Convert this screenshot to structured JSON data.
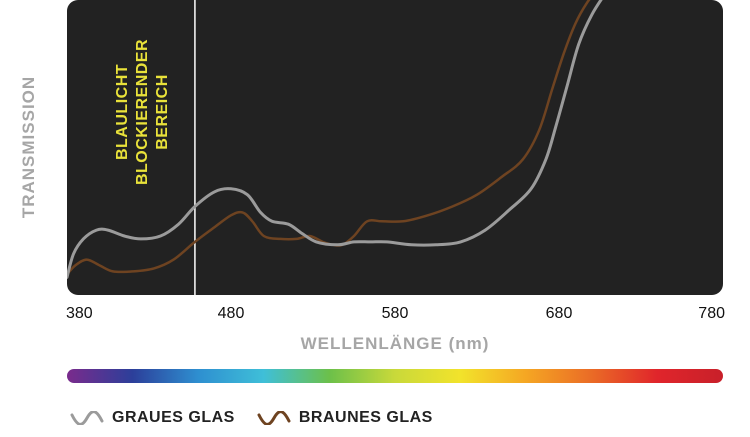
{
  "chart_data": {
    "type": "line",
    "xlabel": "WELLENLÄNGE (nm)",
    "ylabel": "TRANSMISSION",
    "xlim": [
      380,
      780
    ],
    "xticks": [
      "380",
      "480",
      "580",
      "680",
      "780"
    ],
    "y_scale": "relative, unlabeled",
    "grid": false,
    "annotation": {
      "label_lines": [
        "BLAULICHT",
        "BLOCKIERENDER",
        "BEREICH"
      ],
      "x_start": 380,
      "x_end": 458,
      "color": "#e9e23a"
    },
    "spectrum_bar": [
      "#7a2b8c",
      "#2c3f9a",
      "#2e8fd0",
      "#3fbfd8",
      "#6cc04a",
      "#c9d93a",
      "#f2e32b",
      "#f5a623",
      "#ea6b26",
      "#e0252b",
      "#c8202a"
    ],
    "legend_position": "bottom-left",
    "series": [
      {
        "name": "GRAUES GLAS",
        "color": "#9b9b9b",
        "points": [
          [
            380,
            0.06
          ],
          [
            384,
            0.14
          ],
          [
            390,
            0.19
          ],
          [
            398,
            0.22
          ],
          [
            405,
            0.22
          ],
          [
            415,
            0.2
          ],
          [
            425,
            0.19
          ],
          [
            437,
            0.2
          ],
          [
            448,
            0.24
          ],
          [
            458,
            0.3
          ],
          [
            470,
            0.35
          ],
          [
            480,
            0.36
          ],
          [
            490,
            0.34
          ],
          [
            498,
            0.28
          ],
          [
            505,
            0.25
          ],
          [
            515,
            0.24
          ],
          [
            523,
            0.21
          ],
          [
            532,
            0.18
          ],
          [
            545,
            0.17
          ],
          [
            555,
            0.18
          ],
          [
            565,
            0.18
          ],
          [
            575,
            0.18
          ],
          [
            590,
            0.17
          ],
          [
            605,
            0.17
          ],
          [
            620,
            0.18
          ],
          [
            635,
            0.22
          ],
          [
            650,
            0.29
          ],
          [
            663,
            0.36
          ],
          [
            672,
            0.46
          ],
          [
            678,
            0.57
          ],
          [
            685,
            0.71
          ],
          [
            692,
            0.85
          ],
          [
            700,
            0.95
          ],
          [
            708,
            1.02
          ]
        ]
      },
      {
        "name": "BRAUNES GLAS",
        "color": "#6e4321",
        "points": [
          [
            380,
            0.07
          ],
          [
            385,
            0.1
          ],
          [
            392,
            0.12
          ],
          [
            400,
            0.1
          ],
          [
            408,
            0.08
          ],
          [
            420,
            0.08
          ],
          [
            433,
            0.09
          ],
          [
            445,
            0.12
          ],
          [
            458,
            0.18
          ],
          [
            470,
            0.23
          ],
          [
            480,
            0.27
          ],
          [
            487,
            0.28
          ],
          [
            493,
            0.25
          ],
          [
            500,
            0.2
          ],
          [
            510,
            0.19
          ],
          [
            520,
            0.19
          ],
          [
            528,
            0.2
          ],
          [
            536,
            0.18
          ],
          [
            542,
            0.17
          ],
          [
            548,
            0.17
          ],
          [
            555,
            0.2
          ],
          [
            563,
            0.25
          ],
          [
            572,
            0.25
          ],
          [
            585,
            0.25
          ],
          [
            600,
            0.27
          ],
          [
            615,
            0.3
          ],
          [
            630,
            0.34
          ],
          [
            645,
            0.4
          ],
          [
            658,
            0.46
          ],
          [
            668,
            0.56
          ],
          [
            676,
            0.7
          ],
          [
            683,
            0.82
          ],
          [
            690,
            0.92
          ],
          [
            697,
            0.99
          ],
          [
            703,
            1.03
          ]
        ]
      }
    ]
  }
}
